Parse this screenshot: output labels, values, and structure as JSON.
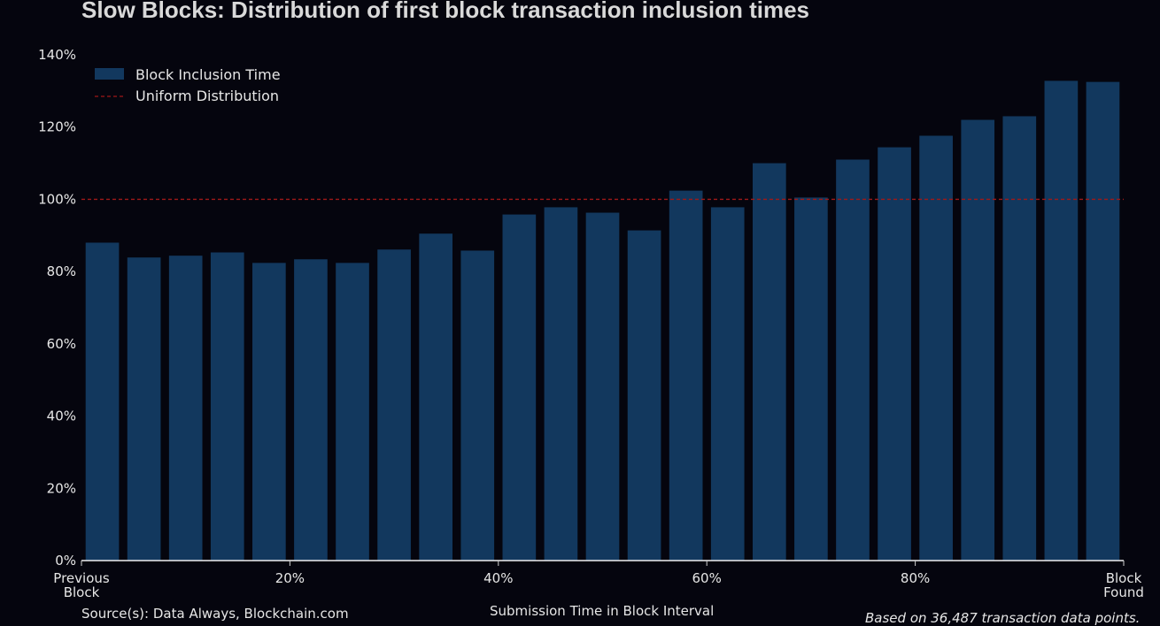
{
  "chart_data": {
    "type": "bar",
    "title": "Slow Blocks: Distribution of first block transaction inclusion times",
    "xlabel": "Submission Time in Block Interval",
    "ylabel": "",
    "ylim": [
      0,
      140
    ],
    "xlim": [
      0,
      100
    ],
    "grid": false,
    "legend_position": "top-left",
    "y_ticks": [
      "0%",
      "20%",
      "40%",
      "60%",
      "80%",
      "100%",
      "120%",
      "140%"
    ],
    "y_tick_values": [
      0,
      20,
      40,
      60,
      80,
      100,
      120,
      140
    ],
    "x_ticks": [
      {
        "value": 0,
        "lines": [
          "Previous",
          "Block"
        ]
      },
      {
        "value": 20,
        "lines": [
          "20%"
        ]
      },
      {
        "value": 40,
        "lines": [
          "40%"
        ]
      },
      {
        "value": 60,
        "lines": [
          "60%"
        ]
      },
      {
        "value": 80,
        "lines": [
          "80%"
        ]
      },
      {
        "value": 100,
        "lines": [
          "Block",
          "Found"
        ]
      }
    ],
    "bin_width": 4,
    "series": [
      {
        "name": "Block Inclusion Time",
        "color": "#12385e",
        "x": [
          2,
          6,
          10,
          14,
          18,
          22,
          26,
          30,
          34,
          38,
          42,
          46,
          50,
          54,
          58,
          62,
          66,
          70,
          74,
          78,
          82,
          86,
          90,
          94,
          98
        ],
        "values": [
          88.0,
          83.9,
          84.4,
          85.3,
          82.4,
          83.4,
          82.4,
          86.1,
          90.5,
          85.8,
          95.8,
          97.8,
          96.3,
          91.4,
          102.4,
          97.8,
          110.0,
          100.5,
          111.0,
          114.4,
          117.6,
          122.0,
          123.0,
          132.8,
          132.5
        ]
      },
      {
        "name": "Uniform Distribution",
        "type": "line",
        "style": "dashed",
        "color": "#a01818",
        "y": 100
      }
    ],
    "legend": [
      "Block Inclusion Time",
      "Uniform Distribution"
    ]
  },
  "footer": {
    "source": "Source(s): Data Always, Blockchain.com",
    "note": "Based on 36,487 transaction data points."
  }
}
